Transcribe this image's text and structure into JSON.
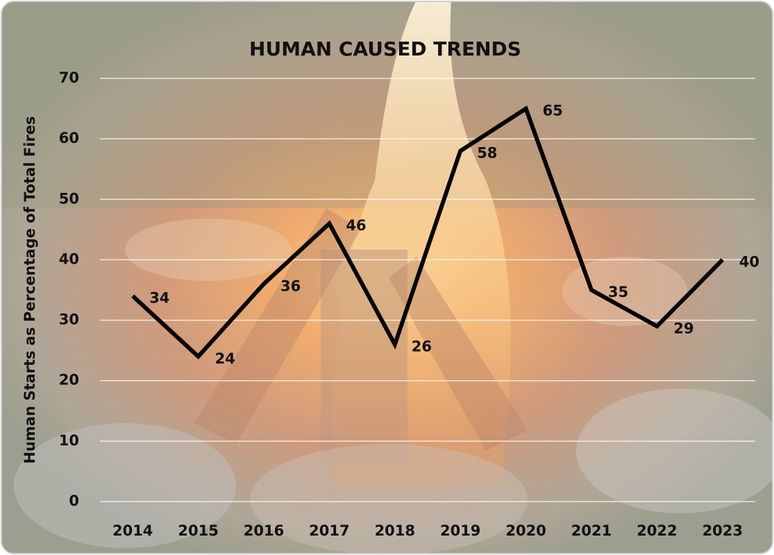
{
  "chart_data": {
    "type": "line",
    "title": "HUMAN CAUSED TRENDS",
    "y_label": "Human Starts as Percentage of Total Fires",
    "categories": [
      "2014",
      "2015",
      "2016",
      "2017",
      "2018",
      "2019",
      "2020",
      "2021",
      "2022",
      "2023"
    ],
    "values": [
      34,
      24,
      36,
      46,
      26,
      58,
      65,
      35,
      29,
      40
    ],
    "color": "#000000",
    "ylim": [
      0,
      70
    ],
    "yticks": [
      0,
      10,
      20,
      30,
      40,
      50,
      60,
      70
    ],
    "grid": true,
    "data_labels": true
  }
}
